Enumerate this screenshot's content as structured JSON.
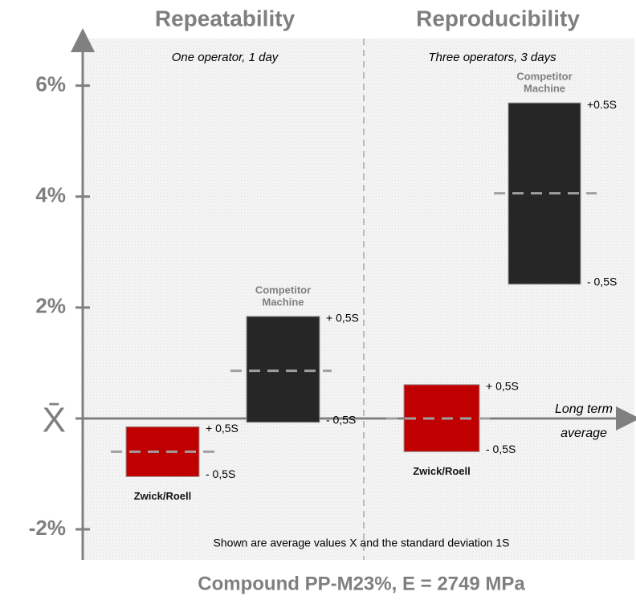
{
  "chart_data": {
    "type": "range",
    "groups": [
      {
        "title": "Repeatability",
        "subtitle": "One operator, 1 day"
      },
      {
        "title": "Reproducibility",
        "subtitle": "Three operators, 3 days"
      }
    ],
    "bars": [
      {
        "group": 0,
        "brand": "Zwick/Roell",
        "color": "#c00000",
        "low": -1.05,
        "high": -0.15,
        "mean": -0.6,
        "high_label": "+ 0,5S",
        "low_label": "- 0,5S"
      },
      {
        "group": 0,
        "label": [
          "Competitor",
          "Machine"
        ],
        "color": "#262626",
        "low": -0.07,
        "high": 1.84,
        "mean": 0.86,
        "high_label": "+ 0,5S",
        "low_label": "- 0,5S"
      },
      {
        "group": 1,
        "brand": "Zwick/Roell",
        "color": "#c00000",
        "low": -0.6,
        "high": 0.61,
        "mean": 0,
        "high_label": "+ 0,5S",
        "low_label": "- 0,5S"
      },
      {
        "group": 1,
        "label": [
          "Competitor",
          "Machine"
        ],
        "color": "#262626",
        "low": 2.42,
        "high": 5.69,
        "mean": 4.06,
        "high_label": "+0.5S",
        "low_label": "- 0,5S"
      }
    ],
    "ylim": [
      -2.55,
      6.85
    ],
    "yticks": [
      {
        "value": -2,
        "label": "-2%"
      },
      {
        "value": 0,
        "label": "X̄"
      },
      {
        "value": 2,
        "label": "2%"
      },
      {
        "value": 4,
        "label": "4%"
      },
      {
        "value": 6,
        "label": "6%"
      }
    ],
    "reference_label": [
      "Long term",
      "average"
    ],
    "footnote": "Shown are average values X and the standard deviation 1S",
    "xlabel": "Compound PP-M23%, E = 2749 MPa"
  }
}
